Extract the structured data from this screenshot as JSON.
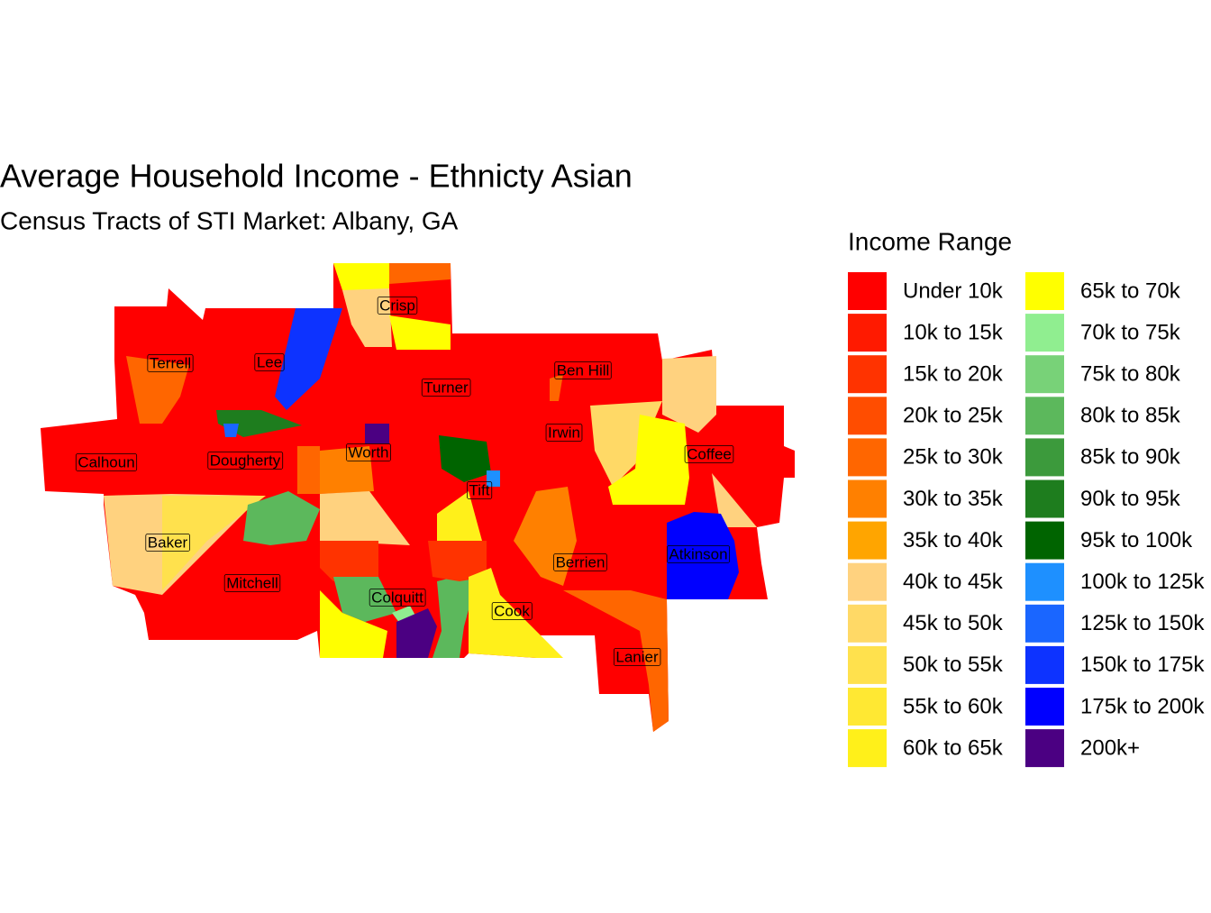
{
  "title": "Average Household Income - Ethnicty Asian",
  "subtitle": "Census Tracts of STI Market: Albany, GA",
  "legend": {
    "title": "Income Range",
    "items": [
      {
        "label": "Under 10k",
        "color": "#FF0000"
      },
      {
        "label": "10k to 15k",
        "color": "#FF1A00"
      },
      {
        "label": "15k to 20k",
        "color": "#FF3300"
      },
      {
        "label": "20k to 25k",
        "color": "#FF4D00"
      },
      {
        "label": "25k to 30k",
        "color": "#FF6600"
      },
      {
        "label": "30k to 35k",
        "color": "#FF8000"
      },
      {
        "label": "35k to 40k",
        "color": "#FFA500"
      },
      {
        "label": "40k to 45k",
        "color": "#FFD27F"
      },
      {
        "label": "45k to 50k",
        "color": "#FFD966"
      },
      {
        "label": "50k to 55k",
        "color": "#FFE14D"
      },
      {
        "label": "55k to 60k",
        "color": "#FFE833"
      },
      {
        "label": "60k to 65k",
        "color": "#FFF01A"
      },
      {
        "label": "65k to 70k",
        "color": "#FFFF00"
      },
      {
        "label": "70k to 75k",
        "color": "#90EE90"
      },
      {
        "label": "75k to 80k",
        "color": "#78D278"
      },
      {
        "label": "80k to 85k",
        "color": "#5CB85C"
      },
      {
        "label": "85k to 90k",
        "color": "#3C9A3C"
      },
      {
        "label": "90k to 95k",
        "color": "#1E7D1E"
      },
      {
        "label": "95k to 100k",
        "color": "#006400"
      },
      {
        "label": "100k to 125k",
        "color": "#1E90FF"
      },
      {
        "label": "125k to 150k",
        "color": "#1A66FF"
      },
      {
        "label": "150k to 175k",
        "color": "#0D33FF"
      },
      {
        "label": "175k to 200k",
        "color": "#0000FF"
      },
      {
        "label": "200k+",
        "color": "#4B0082"
      }
    ]
  },
  "counties": [
    "Crisp",
    "Terrell",
    "Lee",
    "Turner",
    "Ben Hill",
    "Irwin",
    "Worth",
    "Calhoun",
    "Dougherty",
    "Coffee",
    "Tift",
    "Baker",
    "Atkinson",
    "Berrien",
    "Mitchell",
    "Colquitt",
    "Cook",
    "Lanier"
  ]
}
